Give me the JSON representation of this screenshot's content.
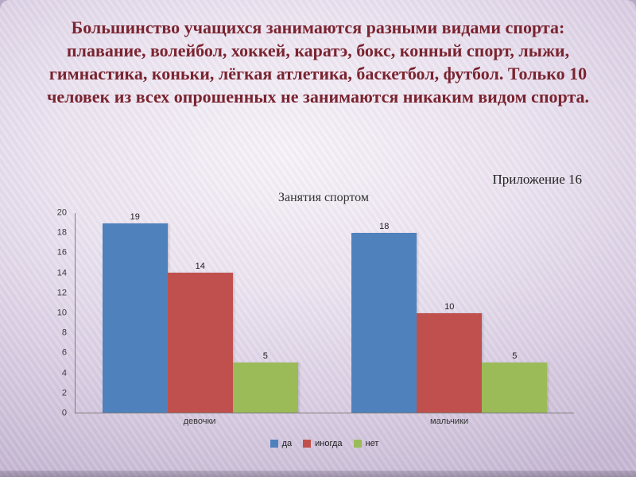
{
  "slide": {
    "title": "Большинство учащихся занимаются разными видами спорта: плавание, волейбол, хоккей, каратэ, бокс, конный спорт, лыжи, гимнастика, коньки, лёгкая атлетика, баскетбол, футбол. Только 10 человек из всех опрошенных не занимаются никаким видом спорта.",
    "annotation": "Приложение 16"
  },
  "chart_data": {
    "type": "bar",
    "title": "Занятия спортом",
    "categories": [
      "девочки",
      "мальчики"
    ],
    "series": [
      {
        "name": "да",
        "color": "#4f81bd",
        "values": [
          19,
          18
        ]
      },
      {
        "name": "иногда",
        "color": "#c0504d",
        "values": [
          14,
          10
        ]
      },
      {
        "name": "нет",
        "color": "#9bbb59",
        "values": [
          5,
          5
        ]
      }
    ],
    "ylim": [
      0,
      20
    ],
    "ytick_step": 2,
    "grid": false,
    "legend_position": "bottom",
    "xlabel": "",
    "ylabel": ""
  },
  "colors": {
    "title_text": "#7a2430",
    "axis_line": "#7f7f7f",
    "axis_text": "#3a3a3a"
  }
}
